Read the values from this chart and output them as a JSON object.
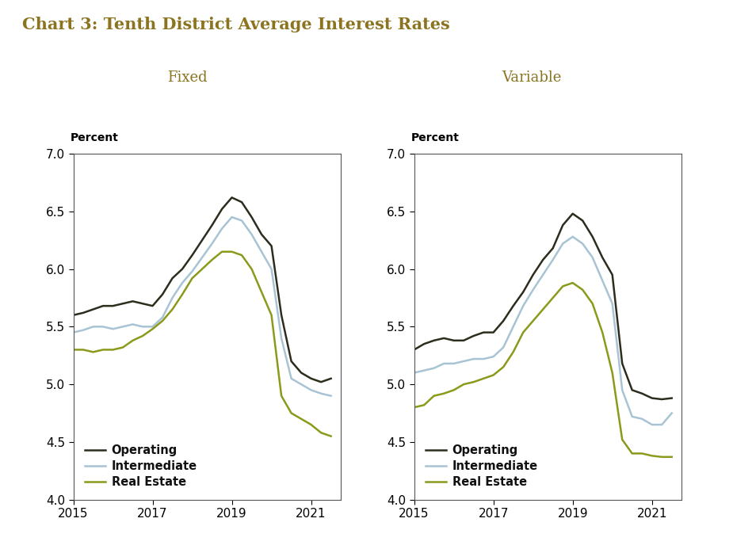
{
  "title": "Chart 3: Tenth District Average Interest Rates",
  "title_color": "#8B7320",
  "subtitle_fixed": "Fixed",
  "subtitle_variable": "Variable",
  "subtitle_color": "#8B7320",
  "ylabel": "Percent",
  "ylim": [
    4.0,
    7.0
  ],
  "yticks": [
    4.0,
    4.5,
    5.0,
    5.5,
    6.0,
    6.5,
    7.0
  ],
  "xticks": [
    2015,
    2017,
    2019,
    2021
  ],
  "line_colors": {
    "operating": "#2d2d1e",
    "intermediate": "#a8c4d4",
    "real_estate": "#8b9a1a"
  },
  "legend_labels": [
    "Operating",
    "Intermediate",
    "Real Estate"
  ],
  "fixed": {
    "x": [
      2015.0,
      2015.25,
      2015.5,
      2015.75,
      2016.0,
      2016.25,
      2016.5,
      2016.75,
      2017.0,
      2017.25,
      2017.5,
      2017.75,
      2018.0,
      2018.25,
      2018.5,
      2018.75,
      2019.0,
      2019.25,
      2019.5,
      2019.75,
      2020.0,
      2020.25,
      2020.5,
      2020.75,
      2021.0,
      2021.25,
      2021.5
    ],
    "operating": [
      5.6,
      5.62,
      5.65,
      5.68,
      5.68,
      5.7,
      5.72,
      5.7,
      5.68,
      5.78,
      5.92,
      6.0,
      6.12,
      6.25,
      6.38,
      6.52,
      6.62,
      6.58,
      6.45,
      6.3,
      6.2,
      5.6,
      5.2,
      5.1,
      5.05,
      5.02,
      5.05
    ],
    "intermediate": [
      5.45,
      5.47,
      5.5,
      5.5,
      5.48,
      5.5,
      5.52,
      5.5,
      5.5,
      5.58,
      5.75,
      5.88,
      5.98,
      6.1,
      6.22,
      6.35,
      6.45,
      6.42,
      6.3,
      6.15,
      6.0,
      5.4,
      5.05,
      5.0,
      4.95,
      4.92,
      4.9
    ],
    "real_estate": [
      5.3,
      5.3,
      5.28,
      5.3,
      5.3,
      5.32,
      5.38,
      5.42,
      5.48,
      5.55,
      5.65,
      5.78,
      5.92,
      6.0,
      6.08,
      6.15,
      6.15,
      6.12,
      6.0,
      5.8,
      5.6,
      4.9,
      4.75,
      4.7,
      4.65,
      4.58,
      4.55
    ]
  },
  "variable": {
    "x": [
      2015.0,
      2015.25,
      2015.5,
      2015.75,
      2016.0,
      2016.25,
      2016.5,
      2016.75,
      2017.0,
      2017.25,
      2017.5,
      2017.75,
      2018.0,
      2018.25,
      2018.5,
      2018.75,
      2019.0,
      2019.25,
      2019.5,
      2019.75,
      2020.0,
      2020.25,
      2020.5,
      2020.75,
      2021.0,
      2021.25,
      2021.5
    ],
    "operating": [
      5.3,
      5.35,
      5.38,
      5.4,
      5.38,
      5.38,
      5.42,
      5.45,
      5.45,
      5.55,
      5.68,
      5.8,
      5.95,
      6.08,
      6.18,
      6.38,
      6.48,
      6.42,
      6.28,
      6.1,
      5.95,
      5.18,
      4.95,
      4.92,
      4.88,
      4.87,
      4.88
    ],
    "intermediate": [
      5.1,
      5.12,
      5.14,
      5.18,
      5.18,
      5.2,
      5.22,
      5.22,
      5.24,
      5.32,
      5.5,
      5.68,
      5.82,
      5.95,
      6.08,
      6.22,
      6.28,
      6.22,
      6.1,
      5.9,
      5.7,
      4.95,
      4.72,
      4.7,
      4.65,
      4.65,
      4.75
    ],
    "real_estate": [
      4.8,
      4.82,
      4.9,
      4.92,
      4.95,
      5.0,
      5.02,
      5.05,
      5.08,
      5.15,
      5.28,
      5.45,
      5.55,
      5.65,
      5.75,
      5.85,
      5.88,
      5.82,
      5.7,
      5.45,
      5.1,
      4.52,
      4.4,
      4.4,
      4.38,
      4.37,
      4.37
    ]
  },
  "background_color": "#ffffff",
  "linewidth": 1.8
}
